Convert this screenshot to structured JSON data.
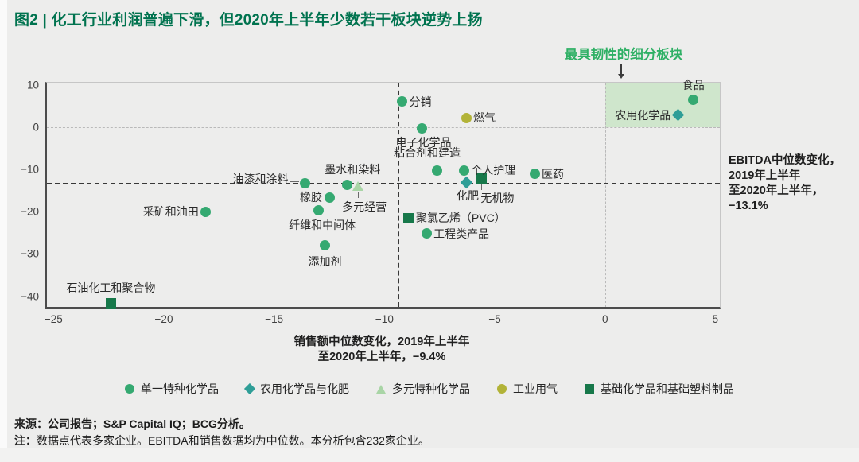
{
  "title": "图2 | 化工行业利润普遍下滑，但2020年上半年少数若干板块逆势上扬",
  "title_color": "#00734f",
  "annotation": {
    "text": "最具韧性的细分板块",
    "color": "#2fb065"
  },
  "source": "来源：公司报告；S&P Capital IQ；BCG分析。",
  "note_prefix": "注：",
  "note_text": "数据点代表多家企业。EBITDA和销售数据均为中位数。本分析包含232家企业。",
  "chart_data": {
    "type": "scatter",
    "xlabel_lines": [
      "销售额中位数变化，2019年上半年",
      "至2020年上半年，−9.4%"
    ],
    "ylabel_lines": [
      "EBITDA中位数变化，",
      "2019年上半年",
      "至2020年上半年，",
      "−13.1%"
    ],
    "xlim": [
      -25.3,
      5.2
    ],
    "ylim": [
      -42.5,
      10.5
    ],
    "x_ticks": [
      {
        "v": -25,
        "label": "−25"
      },
      {
        "v": -20,
        "label": "−20"
      },
      {
        "v": -15,
        "label": "−15"
      },
      {
        "v": -10,
        "label": "−10"
      },
      {
        "v": -5,
        "label": "−5"
      },
      {
        "v": 0,
        "label": "0"
      },
      {
        "v": 5,
        "label": "5"
      }
    ],
    "y_ticks": [
      {
        "v": 10,
        "label": "10"
      },
      {
        "v": 0,
        "label": "0"
      },
      {
        "v": -10,
        "label": "−10"
      },
      {
        "v": -20,
        "label": "−20"
      },
      {
        "v": -30,
        "label": "−30"
      },
      {
        "v": -40,
        "label": "−40"
      }
    ],
    "sales_median": -9.4,
    "ebitda_median": -13.1,
    "zero_line_color": "#b9b9b9",
    "median_line_color": "#383838",
    "highlight_region": {
      "x0": 0,
      "x1": 5.2,
      "y0": 0,
      "y1": 10.5,
      "fill": "#cfe6cc"
    },
    "grid": false,
    "legend_position": "bottom-center",
    "series": [
      {
        "name": "单一特种化学品",
        "marker": "circle",
        "color": "#35a971",
        "points": [
          {
            "label": "食品",
            "x": 4.0,
            "y": 6.5,
            "pos": "above",
            "dx": 0,
            "dy": 0
          },
          {
            "label": "分销",
            "x": -9.2,
            "y": 6.0,
            "pos": "right",
            "dx": 0,
            "dy": 0
          },
          {
            "label": "电子化学品",
            "x": -8.3,
            "y": -0.3,
            "pos": "below",
            "dx": 2,
            "dy": -1
          },
          {
            "label": "粘合剂和建造",
            "x": -7.6,
            "y": -10.2,
            "pos": "above",
            "dx": -13,
            "dy": -4,
            "conn": "up"
          },
          {
            "label": "个人护理",
            "x": -6.4,
            "y": -10.2,
            "pos": "right",
            "dx": 0,
            "dy": 0
          },
          {
            "label": "医药",
            "x": -3.2,
            "y": -11.1,
            "pos": "right",
            "dx": 0,
            "dy": 0
          },
          {
            "label": "油漆和涂料",
            "x": -13.6,
            "y": -13.3,
            "pos": "left",
            "dx": -12,
            "dy": -6,
            "conn": "left"
          },
          {
            "label": "墨水和染料",
            "x": -11.7,
            "y": -13.6,
            "pos": "above",
            "dx": 7,
            "dy": -1
          },
          {
            "label": "橡胶",
            "x": -12.5,
            "y": -16.6,
            "pos": "left",
            "dx": 0,
            "dy": 0
          },
          {
            "label": "纤维和中间体",
            "x": -13.0,
            "y": -19.6,
            "pos": "below",
            "dx": 5,
            "dy": 0
          },
          {
            "label": "添加剂",
            "x": -12.7,
            "y": -28.0,
            "pos": "below",
            "dx": 0,
            "dy": 1
          },
          {
            "label": "采矿和油田",
            "x": -18.1,
            "y": -20.0,
            "pos": "left",
            "dx": 0,
            "dy": 0
          },
          {
            "label": "工程类产品",
            "x": -8.1,
            "y": -25.2,
            "pos": "right",
            "dx": 0,
            "dy": 0
          }
        ]
      },
      {
        "name": "农用化学品与化肥",
        "marker": "diamond",
        "color": "#2f9e97",
        "points": [
          {
            "label": "农用化学品",
            "x": 3.3,
            "y": 2.8,
            "pos": "left",
            "dx": 0,
            "dy": 0
          },
          {
            "label": "化肥",
            "x": -6.3,
            "y": -13.0,
            "pos": "below",
            "dx": 2,
            "dy": -2
          }
        ]
      },
      {
        "name": "多元特种化学品",
        "marker": "triangle",
        "color": "#a9d5a6",
        "points": [
          {
            "label": "多元经营",
            "x": -11.2,
            "y": -13.9,
            "pos": "below",
            "dx": 8,
            "dy": 7,
            "conn": "down"
          }
        ]
      },
      {
        "name": "工业用气",
        "marker": "circle",
        "color": "#b2b338",
        "points": [
          {
            "label": "燃气",
            "x": -6.3,
            "y": 2.2,
            "pos": "right",
            "dx": 0,
            "dy": 0
          }
        ]
      },
      {
        "name": "基础化学品和基础塑料制品",
        "marker": "square",
        "color": "#17784a",
        "points": [
          {
            "label": "无机物",
            "x": -5.6,
            "y": -12.1,
            "pos": "below",
            "dx": 20,
            "dy": 6,
            "conn": "down"
          },
          {
            "label": "聚氯乙烯（PVC）",
            "x": -8.9,
            "y": -21.5,
            "pos": "right",
            "dx": 0,
            "dy": 0
          },
          {
            "label": "石油化工和聚合物",
            "x": -22.4,
            "y": -41.6,
            "pos": "above",
            "dx": 0,
            "dy": -1
          }
        ]
      }
    ]
  }
}
